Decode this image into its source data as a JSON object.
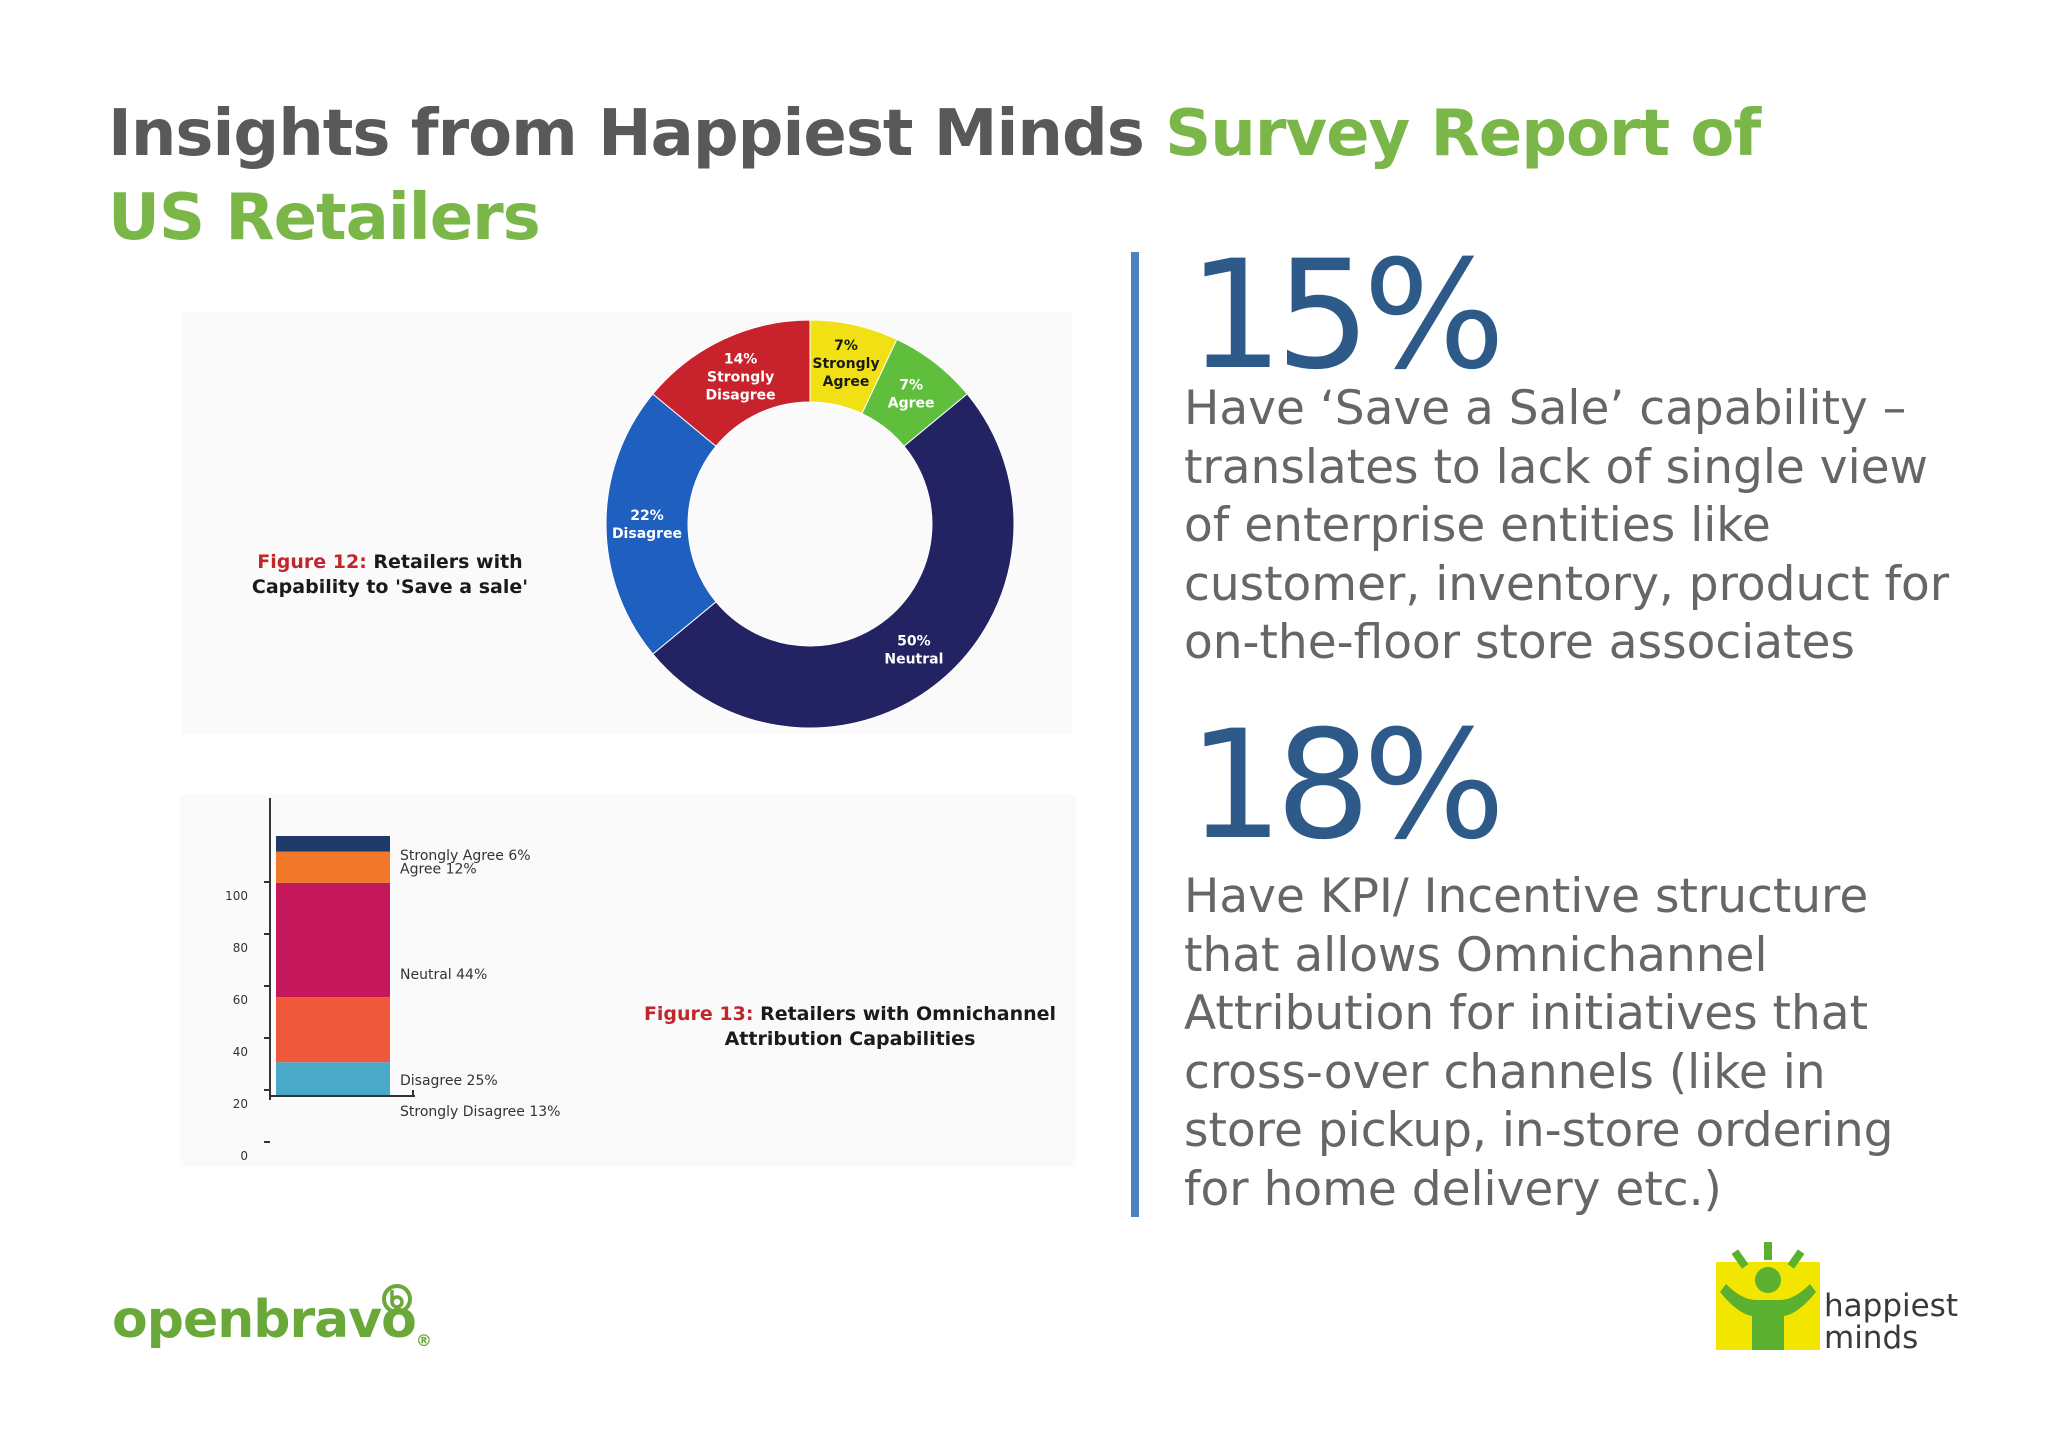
{
  "title": {
    "part1": "Insights from Happiest Minds ",
    "part2": "Survey Report of US Retailers"
  },
  "fig12": {
    "caption_num": "Figure 12:",
    "caption_text": " Retailers with Capability to 'Save a sale'"
  },
  "fig13": {
    "caption_num": "Figure 13:",
    "caption_text": " Retailers with Omnichannel Attribution Capabilities"
  },
  "chart_data": [
    {
      "type": "pie",
      "title": "Figure 12: Retailers with Capability to 'Save a sale'",
      "categories": [
        "Strongly Agree",
        "Agree",
        "Neutral",
        "Disagree",
        "Strongly Disagree"
      ],
      "values": [
        7,
        7,
        50,
        22,
        14
      ],
      "labels": [
        "7%",
        "7%",
        "50%",
        "22%",
        "14%"
      ],
      "colors": [
        "#f0e014",
        "#5fbf3c",
        "#232262",
        "#1f5fbf",
        "#c8222c"
      ]
    },
    {
      "type": "bar",
      "title": "Figure 13: Retailers with Omnichannel Attribution Capabilities",
      "stacked": true,
      "categories": [
        "Strongly Disagree",
        "Disagree",
        "Neutral",
        "Agree",
        "Strongly Agree"
      ],
      "values": [
        13,
        25,
        44,
        12,
        6
      ],
      "labels": [
        "Strongly Disagree 13%",
        "Disagree 25%",
        "Neutral 44%",
        "Agree 12%",
        "Strongly Agree 6%"
      ],
      "colors": [
        "#4aa8c8",
        "#f0583c",
        "#c4185a",
        "#f07828",
        "#1f3a6a"
      ],
      "yticks": [
        "0",
        "20",
        "40",
        "60",
        "80",
        "100"
      ],
      "ylim": [
        0,
        100
      ]
    }
  ],
  "stats": [
    {
      "value": "15%",
      "lines": [
        "Have ‘Save a Sale’ capability –",
        "translates to lack of single view",
        "of enterprise entities like",
        "customer, inventory, product for",
        "on-the-floor store associates"
      ]
    },
    {
      "value": "18%",
      "lines": [
        "Have KPI/ Incentive structure",
        "that allows Omnichannel",
        "Attribution for initiatives that",
        "cross-over channels (like in",
        "store pickup, in-store ordering",
        "for home delivery etc.)"
      ]
    }
  ],
  "logos": {
    "openbravo": "openbravo",
    "happiest_line1": "happiest",
    "happiest_line2": "minds"
  }
}
